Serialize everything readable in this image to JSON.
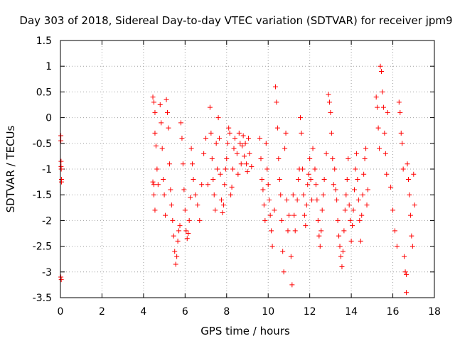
{
  "chart_data": {
    "type": "scatter",
    "title": "Day 303 of 2018, Sidereal Day-to-day VTEC variation (SDTVAR) for receiver jpm9",
    "xlabel": "GPS time / hours",
    "ylabel": "SDTVAR / TECUs",
    "xlim": [
      0,
      18
    ],
    "ylim": [
      -3.5,
      1.5
    ],
    "xticks": [
      0,
      2,
      4,
      6,
      8,
      10,
      12,
      14,
      16,
      18
    ],
    "xtick_labels": [
      "0",
      "2",
      "4",
      "6",
      "8",
      "10",
      "12",
      "14",
      "16",
      "18"
    ],
    "yticks": [
      -3.5,
      -3,
      -2.5,
      -2,
      -1.5,
      -1,
      -0.5,
      0,
      0.5,
      1,
      1.5
    ],
    "ytick_labels": [
      "-3.5",
      "-3",
      "-2.5",
      "-2",
      "-1.5",
      "-1",
      "-0.5",
      "0",
      "0.5",
      "1",
      "1.5"
    ],
    "grid": true,
    "marker": "+",
    "marker_color": "#ff0000",
    "series": [
      {
        "name": "SDTVAR",
        "points": [
          [
            0.02,
            -0.35
          ],
          [
            0.02,
            -0.45
          ],
          [
            0.03,
            -0.85
          ],
          [
            0.03,
            -0.95
          ],
          [
            0.04,
            -1.0
          ],
          [
            0.05,
            -1.2
          ],
          [
            0.05,
            -1.25
          ],
          [
            0.02,
            -3.1
          ],
          [
            0.04,
            -3.15
          ],
          [
            4.45,
            -1.25
          ],
          [
            4.5,
            -1.3
          ],
          [
            4.5,
            -1.5
          ],
          [
            4.55,
            -1.8
          ],
          [
            4.45,
            0.4
          ],
          [
            4.5,
            0.3
          ],
          [
            4.55,
            0.1
          ],
          [
            4.55,
            -0.3
          ],
          [
            4.6,
            -0.55
          ],
          [
            4.65,
            -1.0
          ],
          [
            4.7,
            -1.3
          ],
          [
            4.8,
            0.25
          ],
          [
            4.85,
            -0.1
          ],
          [
            4.9,
            -0.6
          ],
          [
            4.95,
            -1.2
          ],
          [
            5.0,
            -1.5
          ],
          [
            5.05,
            -1.9
          ],
          [
            5.1,
            0.35
          ],
          [
            5.15,
            0.1
          ],
          [
            5.2,
            -0.2
          ],
          [
            5.25,
            -0.9
          ],
          [
            5.3,
            -1.4
          ],
          [
            5.35,
            -1.7
          ],
          [
            5.4,
            -2.0
          ],
          [
            5.45,
            -2.3
          ],
          [
            5.5,
            -2.6
          ],
          [
            5.55,
            -2.85
          ],
          [
            5.6,
            -2.7
          ],
          [
            5.65,
            -2.4
          ],
          [
            5.7,
            -2.2
          ],
          [
            5.75,
            -2.1
          ],
          [
            5.8,
            -0.1
          ],
          [
            5.85,
            -0.4
          ],
          [
            5.9,
            -0.9
          ],
          [
            5.95,
            -1.4
          ],
          [
            6.0,
            -1.8
          ],
          [
            6.05,
            -2.2
          ],
          [
            6.1,
            -2.35
          ],
          [
            6.15,
            -2.25
          ],
          [
            6.2,
            -2.0
          ],
          [
            6.25,
            -1.55
          ],
          [
            6.3,
            -0.6
          ],
          [
            6.35,
            -0.9
          ],
          [
            6.4,
            -1.2
          ],
          [
            6.5,
            -1.5
          ],
          [
            6.6,
            -1.7
          ],
          [
            6.7,
            -2.0
          ],
          [
            6.8,
            -1.3
          ],
          [
            6.9,
            -0.7
          ],
          [
            7.0,
            -0.4
          ],
          [
            7.1,
            -1.3
          ],
          [
            7.2,
            0.2
          ],
          [
            7.25,
            -0.3
          ],
          [
            7.3,
            -0.8
          ],
          [
            7.35,
            -1.2
          ],
          [
            7.4,
            -1.5
          ],
          [
            7.45,
            -1.8
          ],
          [
            7.5,
            -0.5
          ],
          [
            7.55,
            -1.0
          ],
          [
            7.6,
            0.0
          ],
          [
            7.65,
            -0.4
          ],
          [
            7.7,
            -1.1
          ],
          [
            7.75,
            -1.6
          ],
          [
            7.8,
            -1.85
          ],
          [
            7.85,
            -1.7
          ],
          [
            7.9,
            -1.3
          ],
          [
            7.95,
            -1.0
          ],
          [
            8.0,
            -0.8
          ],
          [
            8.05,
            -0.5
          ],
          [
            8.1,
            -0.2
          ],
          [
            8.15,
            -0.3
          ],
          [
            8.2,
            -1.5
          ],
          [
            8.25,
            -1.35
          ],
          [
            8.3,
            -1.0
          ],
          [
            8.35,
            -0.6
          ],
          [
            8.4,
            -0.4
          ],
          [
            8.5,
            -0.7
          ],
          [
            8.55,
            -1.1
          ],
          [
            8.6,
            -0.3
          ],
          [
            8.65,
            -0.5
          ],
          [
            8.7,
            -0.9
          ],
          [
            8.75,
            -0.55
          ],
          [
            8.8,
            -0.35
          ],
          [
            8.85,
            -0.75
          ],
          [
            8.9,
            -0.5
          ],
          [
            8.95,
            -0.9
          ],
          [
            9.0,
            -1.05
          ],
          [
            9.05,
            -0.4
          ],
          [
            9.1,
            -0.7
          ],
          [
            9.2,
            -0.95
          ],
          [
            9.6,
            -0.4
          ],
          [
            9.65,
            -0.8
          ],
          [
            9.7,
            -1.2
          ],
          [
            9.75,
            -1.4
          ],
          [
            9.8,
            -1.7
          ],
          [
            9.85,
            -2.0
          ],
          [
            9.9,
            -0.5
          ],
          [
            9.95,
            -1.0
          ],
          [
            10.0,
            -1.3
          ],
          [
            10.05,
            -1.6
          ],
          [
            10.1,
            -1.9
          ],
          [
            10.15,
            -2.2
          ],
          [
            10.2,
            -2.5
          ],
          [
            10.3,
            -1.8
          ],
          [
            10.35,
            0.6
          ],
          [
            10.4,
            0.3
          ],
          [
            10.45,
            -0.2
          ],
          [
            10.5,
            -0.8
          ],
          [
            10.55,
            -1.2
          ],
          [
            10.6,
            -1.5
          ],
          [
            10.65,
            -2.0
          ],
          [
            10.7,
            -2.6
          ],
          [
            10.75,
            -3.0
          ],
          [
            10.8,
            -0.6
          ],
          [
            10.85,
            -0.3
          ],
          [
            10.9,
            -1.6
          ],
          [
            10.95,
            -2.2
          ],
          [
            11.0,
            -1.9
          ],
          [
            11.1,
            -2.7
          ],
          [
            11.15,
            -3.25
          ],
          [
            11.2,
            -1.5
          ],
          [
            11.25,
            -1.9
          ],
          [
            11.3,
            -2.2
          ],
          [
            11.4,
            -1.6
          ],
          [
            11.45,
            -1.2
          ],
          [
            11.5,
            -1.0
          ],
          [
            11.55,
            0.0
          ],
          [
            11.6,
            -0.3
          ],
          [
            11.65,
            -1.0
          ],
          [
            11.7,
            -1.5
          ],
          [
            11.75,
            -1.9
          ],
          [
            11.8,
            -2.1
          ],
          [
            11.85,
            -1.7
          ],
          [
            11.9,
            -1.3
          ],
          [
            11.95,
            -1.1
          ],
          [
            12.0,
            -0.8
          ],
          [
            12.05,
            -1.2
          ],
          [
            12.1,
            -1.6
          ],
          [
            12.15,
            -0.6
          ],
          [
            12.25,
            -1.0
          ],
          [
            12.3,
            -1.3
          ],
          [
            12.35,
            -1.6
          ],
          [
            12.4,
            -2.0
          ],
          [
            12.45,
            -2.3
          ],
          [
            12.5,
            -2.5
          ],
          [
            12.55,
            -2.2
          ],
          [
            12.6,
            -1.8
          ],
          [
            12.65,
            -1.5
          ],
          [
            12.7,
            -1.2
          ],
          [
            12.8,
            -0.7
          ],
          [
            12.9,
            0.45
          ],
          [
            12.95,
            0.3
          ],
          [
            13.0,
            0.1
          ],
          [
            13.05,
            -0.3
          ],
          [
            13.1,
            -0.8
          ],
          [
            13.15,
            -1.3
          ],
          [
            13.2,
            -1.0
          ],
          [
            13.25,
            -1.4
          ],
          [
            13.3,
            -1.6
          ],
          [
            13.35,
            -2.0
          ],
          [
            13.4,
            -2.3
          ],
          [
            13.45,
            -2.5
          ],
          [
            13.5,
            -2.7
          ],
          [
            13.55,
            -2.9
          ],
          [
            13.6,
            -2.6
          ],
          [
            13.65,
            -2.2
          ],
          [
            13.7,
            -1.8
          ],
          [
            13.75,
            -1.5
          ],
          [
            13.8,
            -1.2
          ],
          [
            13.85,
            -0.8
          ],
          [
            13.9,
            -1.7
          ],
          [
            13.95,
            -2.0
          ],
          [
            14.0,
            -2.4
          ],
          [
            14.05,
            -2.1
          ],
          [
            14.1,
            -1.8
          ],
          [
            14.15,
            -1.4
          ],
          [
            14.2,
            -1.0
          ],
          [
            14.25,
            -0.7
          ],
          [
            14.3,
            -1.2
          ],
          [
            14.35,
            -1.6
          ],
          [
            14.4,
            -2.0
          ],
          [
            14.45,
            -2.4
          ],
          [
            14.5,
            -1.9
          ],
          [
            14.55,
            -1.5
          ],
          [
            14.6,
            -1.1
          ],
          [
            14.65,
            -0.8
          ],
          [
            14.7,
            -0.6
          ],
          [
            14.75,
            -1.7
          ],
          [
            14.8,
            -1.4
          ],
          [
            15.2,
            0.4
          ],
          [
            15.25,
            0.2
          ],
          [
            15.3,
            -0.2
          ],
          [
            15.35,
            -0.6
          ],
          [
            15.4,
            1.0
          ],
          [
            15.45,
            0.9
          ],
          [
            15.5,
            0.5
          ],
          [
            15.55,
            0.2
          ],
          [
            15.6,
            -0.3
          ],
          [
            15.65,
            -0.7
          ],
          [
            15.7,
            -1.1
          ],
          [
            15.75,
            0.1
          ],
          [
            15.9,
            -1.35
          ],
          [
            16.0,
            -1.8
          ],
          [
            16.1,
            -2.2
          ],
          [
            16.2,
            -2.5
          ],
          [
            16.3,
            0.3
          ],
          [
            16.35,
            0.1
          ],
          [
            16.4,
            -0.3
          ],
          [
            16.45,
            -0.5
          ],
          [
            16.5,
            -1.0
          ],
          [
            16.55,
            -2.7
          ],
          [
            16.6,
            -3.0
          ],
          [
            16.65,
            -3.05
          ],
          [
            16.7,
            -0.9
          ],
          [
            16.75,
            -1.2
          ],
          [
            16.8,
            -1.5
          ],
          [
            16.85,
            -1.9
          ],
          [
            16.9,
            -2.3
          ],
          [
            16.95,
            -2.5
          ],
          [
            17.0,
            -1.1
          ],
          [
            17.05,
            -1.7
          ],
          [
            16.65,
            -3.4
          ]
        ]
      }
    ]
  }
}
